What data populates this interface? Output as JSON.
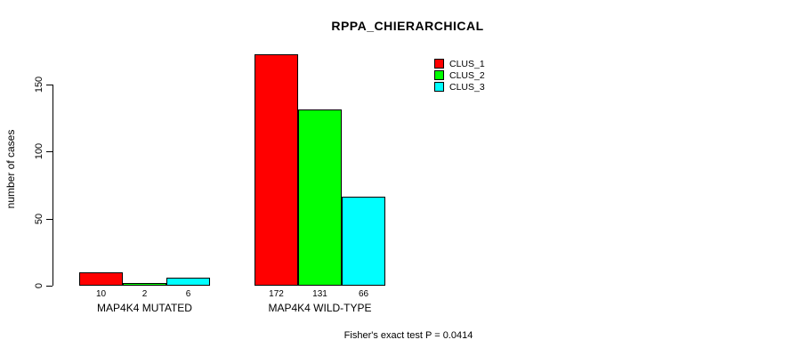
{
  "title": "RPPA_CHIERARCHICAL",
  "annotation": "Fisher's exact test P = 0.0414",
  "chart_data": {
    "type": "bar",
    "title": "RPPA_CHIERARCHICAL",
    "xlabel": "",
    "ylabel": "number of cases",
    "categories": [
      "MAP4K4 MUTATED",
      "MAP4K4 WILD-TYPE"
    ],
    "series": [
      {
        "name": "CLUS_1",
        "color": "#ff0000",
        "values": [
          10,
          172
        ]
      },
      {
        "name": "CLUS_2",
        "color": "#00ff00",
        "values": [
          2,
          131
        ]
      },
      {
        "name": "CLUS_3",
        "color": "#00ffff",
        "values": [
          6,
          66
        ]
      }
    ],
    "bar_value_labels": [
      [
        "10",
        "2",
        "6"
      ],
      [
        "172",
        "131",
        "66"
      ]
    ],
    "yticks": [
      0,
      50,
      100,
      150
    ],
    "ylim": [
      0,
      172
    ],
    "grid": false,
    "legend_position": "top-right",
    "annotation": "Fisher's exact test P = 0.0414"
  }
}
